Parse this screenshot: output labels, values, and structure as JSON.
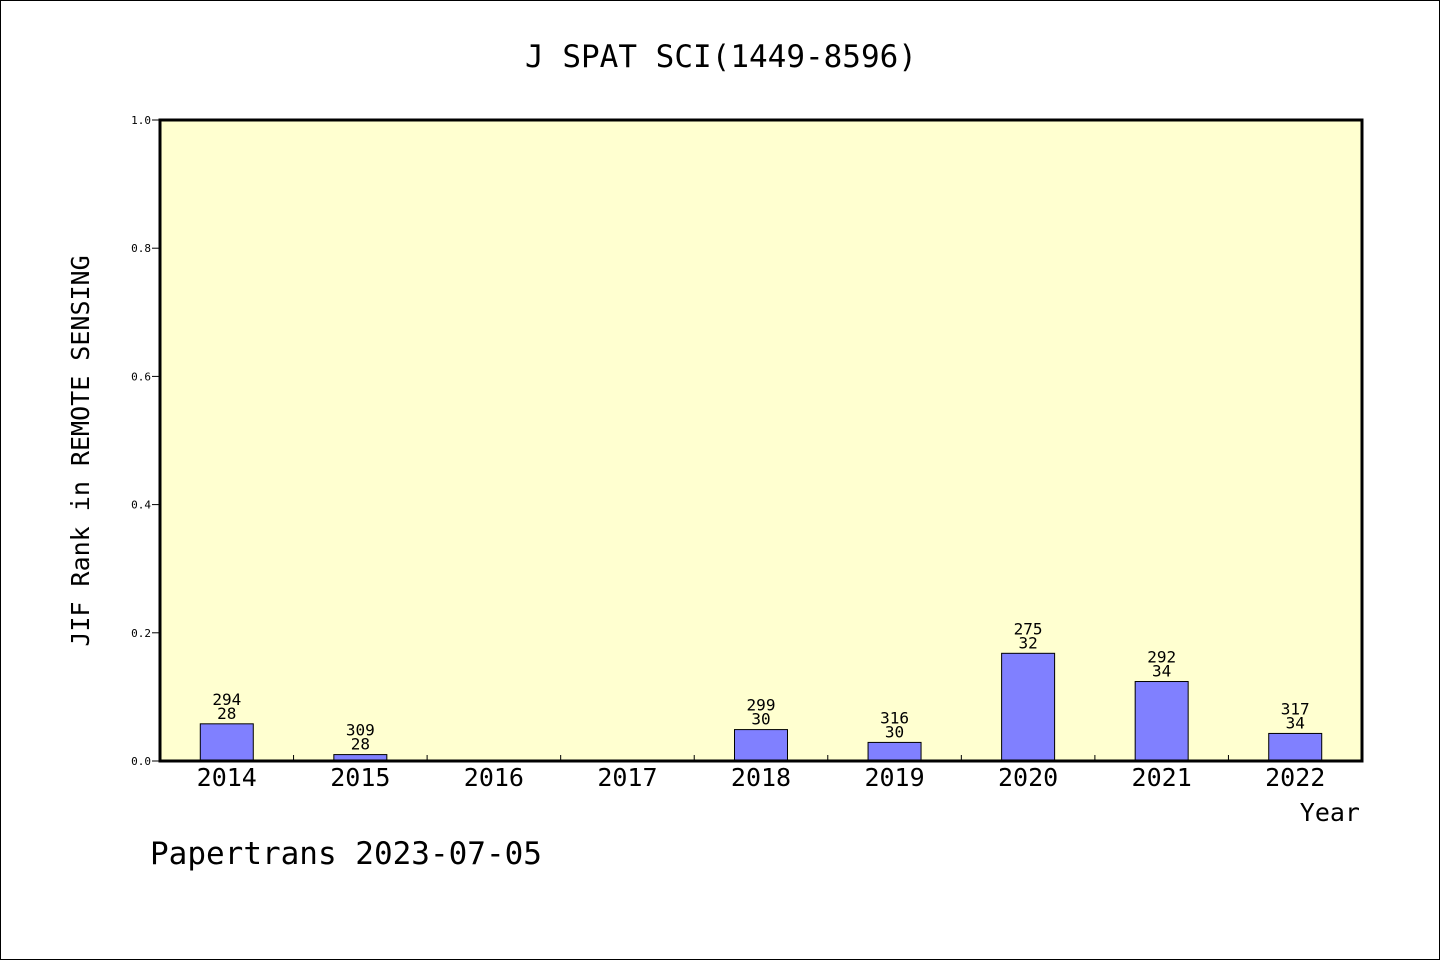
{
  "chart_data": {
    "type": "bar",
    "title": "J SPAT SCI(1449-8596)",
    "xlabel": "Year",
    "ylabel": "JIF Rank in REMOTE SENSING",
    "ylim": [
      0,
      1.0
    ],
    "yticks": [
      "0.0",
      "0.2",
      "0.4",
      "0.6",
      "0.8",
      "1.0"
    ],
    "categories": [
      "2014",
      "2015",
      "2016",
      "2017",
      "2018",
      "2019",
      "2020",
      "2021",
      "2022"
    ],
    "values": [
      0.058,
      0.01,
      null,
      null,
      0.049,
      0.029,
      0.168,
      0.124,
      0.043
    ],
    "labels_top": [
      "294",
      "309",
      "",
      "",
      "299",
      "316",
      "275",
      "292",
      "317"
    ],
    "labels_bottom": [
      "28",
      "28",
      "",
      "",
      "30",
      "30",
      "32",
      "34",
      "34"
    ],
    "plot_background": "#ffffd0",
    "bar_color": "#8080ff",
    "grid": false
  },
  "footer": {
    "text": "Papertrans 2023-07-05"
  }
}
